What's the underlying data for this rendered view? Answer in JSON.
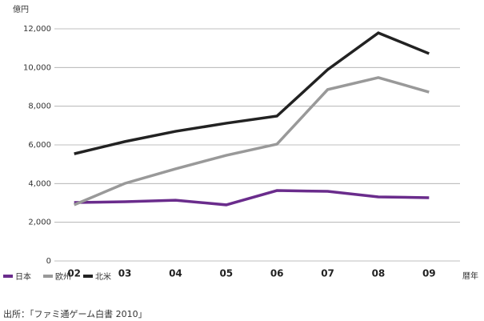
{
  "chart_data": {
    "type": "line",
    "y_label": "億円",
    "x_label": "暦年",
    "source": "出所：「ファミ通ゲーム白書 2010」",
    "categories": [
      "02",
      "03",
      "04",
      "05",
      "06",
      "07",
      "08",
      "09"
    ],
    "series": [
      {
        "name": "日本",
        "color": "#6a2c8c",
        "values": [
          3020,
          3060,
          3140,
          2900,
          3640,
          3600,
          3310,
          3270
        ]
      },
      {
        "name": "欧州",
        "color": "#999999",
        "values": [
          2900,
          4010,
          4760,
          5460,
          6040,
          8860,
          9480,
          8730
        ]
      },
      {
        "name": "北米",
        "color": "#222222",
        "values": [
          5540,
          6170,
          6700,
          7120,
          7490,
          9890,
          11790,
          10720
        ]
      }
    ],
    "ylim": [
      0,
      12000
    ],
    "yticks": [
      0,
      {
        "value": 2000,
        "label": "2,000"
      },
      {
        "value": 4000,
        "label": "4,000"
      },
      {
        "value": 6000,
        "label": "6,000"
      },
      {
        "value": 8000,
        "label": "8,000"
      },
      {
        "value": 10000,
        "label": "10,000"
      },
      {
        "value": 12000,
        "label": "12,000"
      }
    ],
    "grid": true
  }
}
